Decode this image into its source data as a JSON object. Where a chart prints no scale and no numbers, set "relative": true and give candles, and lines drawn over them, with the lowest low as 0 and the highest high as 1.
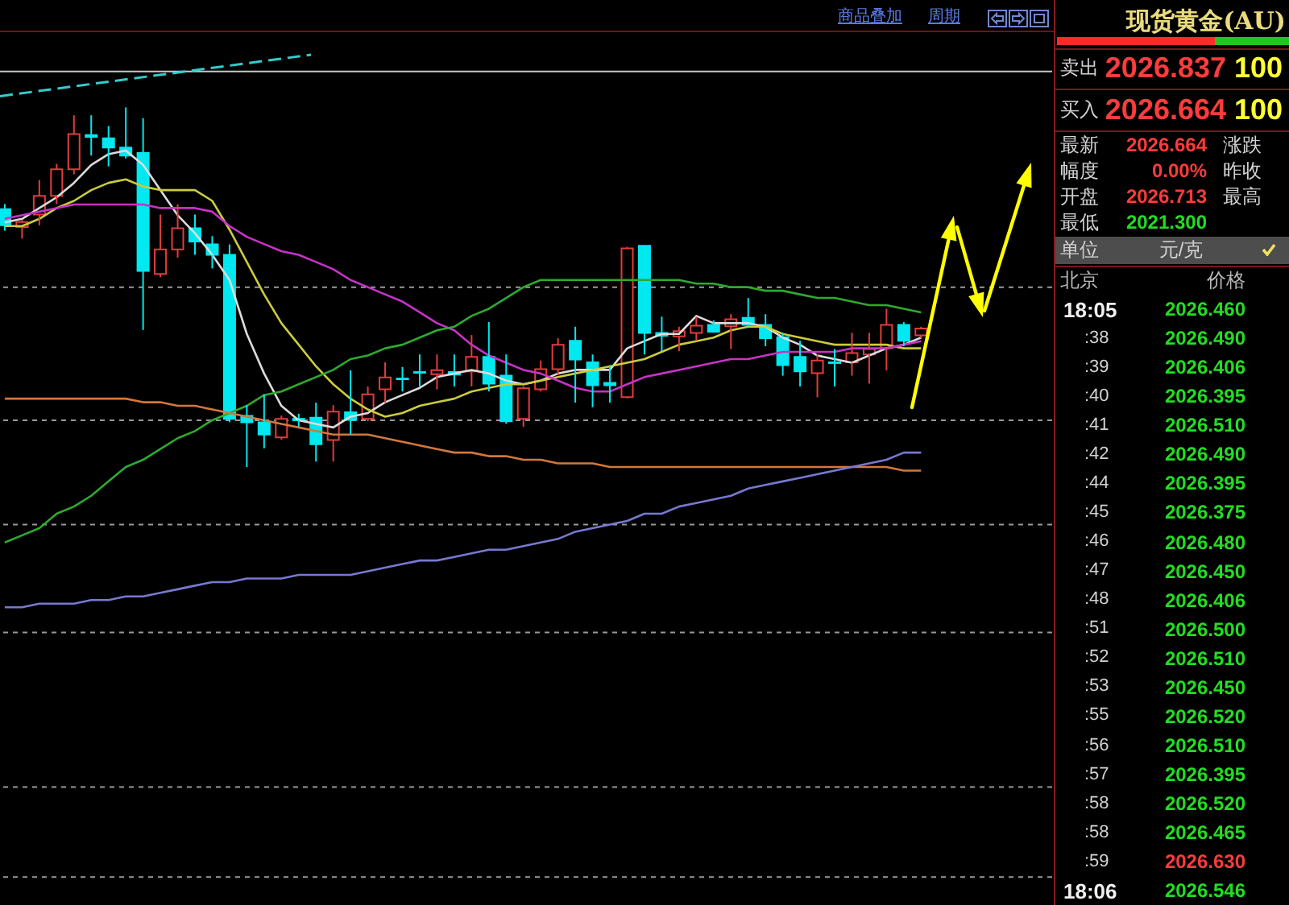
{
  "chart_data": [
    {
      "type": "candlestick",
      "relative": true,
      "annotations": [
        "商品叠加",
        "周期"
      ],
      "categories": [
        null,
        null,
        null,
        null,
        null,
        null,
        null,
        null,
        null,
        null,
        null,
        null,
        null,
        null,
        null,
        null,
        null,
        null,
        null,
        null,
        null,
        null,
        null,
        null,
        null,
        null,
        null,
        null,
        null,
        null,
        null,
        null,
        null,
        null,
        null,
        null,
        null,
        null,
        null,
        null,
        null,
        null,
        null,
        null,
        null,
        null,
        null,
        null,
        null,
        null,
        null,
        null,
        null,
        null
      ],
      "ohlc": [
        [
          0.717,
          0.731,
          0.657,
          0.672
        ],
        [
          0.667,
          0.687,
          0.635,
          0.681
        ],
        [
          0.702,
          0.798,
          0.672,
          0.754
        ],
        [
          0.754,
          0.843,
          0.731,
          0.828
        ],
        [
          0.828,
          0.978,
          0.814,
          0.926
        ],
        [
          0.923,
          0.978,
          0.866,
          0.918
        ],
        [
          0.914,
          0.948,
          0.836,
          0.888
        ],
        [
          0.888,
          1.0,
          0.858,
          0.866
        ],
        [
          0.873,
          0.97,
          0.381,
          0.545
        ],
        [
          0.537,
          0.702,
          0.528,
          0.605
        ],
        [
          0.605,
          0.731,
          0.582,
          0.664
        ],
        [
          0.664,
          0.702,
          0.59,
          0.627
        ],
        [
          0.619,
          0.642,
          0.552,
          0.59
        ],
        [
          0.59,
          0.619,
          0.125,
          0.134
        ],
        [
          0.142,
          0.172,
          0.0,
          0.124
        ],
        [
          0.124,
          0.202,
          0.052,
          0.09
        ],
        [
          0.082,
          0.143,
          0.076,
          0.134
        ],
        [
          0.134,
          0.148,
          0.112,
          0.13
        ],
        [
          0.137,
          0.179,
          0.015,
          0.063
        ],
        [
          0.075,
          0.172,
          0.015,
          0.154
        ],
        [
          0.152,
          0.269,
          0.09,
          0.131
        ],
        [
          0.134,
          0.224,
          0.127,
          0.202
        ],
        [
          0.216,
          0.291,
          0.179,
          0.249
        ],
        [
          0.246,
          0.278,
          0.21,
          0.244
        ],
        [
          0.264,
          0.313,
          0.224,
          0.262
        ],
        [
          0.258,
          0.313,
          0.216,
          0.269
        ],
        [
          0.264,
          0.313,
          0.224,
          0.257
        ],
        [
          0.266,
          0.367,
          0.224,
          0.306
        ],
        [
          0.306,
          0.403,
          0.21,
          0.232
        ],
        [
          0.254,
          0.313,
          0.12,
          0.127
        ],
        [
          0.134,
          0.224,
          0.112,
          0.219
        ],
        [
          0.216,
          0.296,
          0.21,
          0.272
        ],
        [
          0.272,
          0.358,
          0.255,
          0.34
        ],
        [
          0.351,
          0.39,
          0.179,
          0.299
        ],
        [
          0.291,
          0.313,
          0.166,
          0.227
        ],
        [
          0.234,
          0.283,
          0.179,
          0.227
        ],
        [
          0.194,
          0.612,
          0.191,
          0.608
        ],
        [
          0.615,
          0.615,
          0.313,
          0.373
        ],
        [
          0.373,
          0.418,
          0.322,
          0.365
        ],
        [
          0.363,
          0.39,
          0.322,
          0.378
        ],
        [
          0.373,
          0.418,
          0.351,
          0.393
        ],
        [
          0.395,
          0.408,
          0.373,
          0.376
        ],
        [
          0.391,
          0.425,
          0.328,
          0.411
        ],
        [
          0.415,
          0.47,
          0.39,
          0.395
        ],
        [
          0.395,
          0.425,
          0.336,
          0.358
        ],
        [
          0.361,
          0.373,
          0.254,
          0.283
        ],
        [
          0.306,
          0.351,
          0.224,
          0.266
        ],
        [
          0.261,
          0.313,
          0.194,
          0.296
        ],
        [
          0.291,
          0.328,
          0.224,
          0.289
        ],
        [
          0.291,
          0.373,
          0.254,
          0.317
        ],
        [
          0.313,
          0.373,
          0.232,
          0.328
        ],
        [
          0.331,
          0.44,
          0.269,
          0.395
        ],
        [
          0.395,
          0.403,
          0.336,
          0.351
        ],
        [
          0.366,
          0.39,
          0.358,
          0.385
        ]
      ],
      "colors": [
        "#00e8f0",
        "#e23c3c",
        "#e23c3c",
        "#e23c3c",
        "#e23c3c",
        "#00e8f0",
        "#00e8f0",
        "#00e8f0",
        "#00e8f0",
        "#e23c3c",
        "#e23c3c",
        "#00e8f0",
        "#00e8f0",
        "#00e8f0",
        "#00e8f0",
        "#00e8f0",
        "#e23c3c",
        "#00e8f0",
        "#00e8f0",
        "#e23c3c",
        "#00e8f0",
        "#e23c3c",
        "#e23c3c",
        "#00e8f0",
        "#00e8f0",
        "#e23c3c",
        "#00e8f0",
        "#e23c3c",
        "#00e8f0",
        "#00e8f0",
        "#e23c3c",
        "#e23c3c",
        "#e23c3c",
        "#00e8f0",
        "#00e8f0",
        "#00e8f0",
        "#e23c3c",
        "#00e8f0",
        "#00e8f0",
        "#e23c3c",
        "#e23c3c",
        "#00e8f0",
        "#e23c3c",
        "#00e8f0",
        "#00e8f0",
        "#00e8f0",
        "#00e8f0",
        "#e23c3c",
        "#00e8f0",
        "#e23c3c",
        "#e23c3c",
        "#e23c3c",
        "#00e8f0",
        "#e23c3c"
      ],
      "series": [
        {
          "type": "line",
          "color": "#dcdcdc",
          "values": [
            0.68,
            0.69,
            0.72,
            0.75,
            0.79,
            0.84,
            0.87,
            0.88,
            0.84,
            0.77,
            0.7,
            0.65,
            0.59,
            0.52,
            0.37,
            0.26,
            0.17,
            0.13,
            0.12,
            0.11,
            0.14,
            0.15,
            0.18,
            0.2,
            0.22,
            0.25,
            0.26,
            0.27,
            0.26,
            0.24,
            0.23,
            0.24,
            0.26,
            0.27,
            0.27,
            0.27,
            0.33,
            0.35,
            0.37,
            0.37,
            0.42,
            0.4,
            0.4,
            0.4,
            0.39,
            0.36,
            0.34,
            0.31,
            0.3,
            0.29,
            0.31,
            0.33,
            0.34,
            0.36
          ]
        },
        {
          "type": "line",
          "color": "#cccc3c",
          "values": [
            0.67,
            0.67,
            0.69,
            0.72,
            0.74,
            0.77,
            0.79,
            0.8,
            0.78,
            0.77,
            0.77,
            0.77,
            0.74,
            0.66,
            0.57,
            0.48,
            0.4,
            0.34,
            0.28,
            0.23,
            0.19,
            0.16,
            0.14,
            0.15,
            0.17,
            0.18,
            0.19,
            0.21,
            0.22,
            0.23,
            0.23,
            0.24,
            0.25,
            0.26,
            0.27,
            0.28,
            0.29,
            0.3,
            0.32,
            0.34,
            0.35,
            0.36,
            0.38,
            0.39,
            0.39,
            0.37,
            0.36,
            0.35,
            0.34,
            0.34,
            0.34,
            0.34,
            0.33,
            0.33
          ]
        },
        {
          "type": "line",
          "color": "#c832c8",
          "values": [
            0.69,
            0.7,
            0.71,
            0.72,
            0.73,
            0.73,
            0.73,
            0.73,
            0.73,
            0.72,
            0.72,
            0.72,
            0.71,
            0.67,
            0.64,
            0.62,
            0.6,
            0.59,
            0.57,
            0.55,
            0.52,
            0.5,
            0.48,
            0.46,
            0.43,
            0.4,
            0.38,
            0.34,
            0.31,
            0.29,
            0.27,
            0.26,
            0.24,
            0.22,
            0.21,
            0.21,
            0.23,
            0.25,
            0.26,
            0.27,
            0.28,
            0.29,
            0.3,
            0.3,
            0.31,
            0.32,
            0.32,
            0.32,
            0.32,
            0.33,
            0.33,
            0.33,
            0.34,
            0.35
          ]
        },
        {
          "type": "line",
          "color": "#2eaa2e",
          "values": [
            -0.21,
            -0.19,
            -0.17,
            -0.13,
            -0.11,
            -0.08,
            -0.04,
            0.0,
            0.02,
            0.05,
            0.08,
            0.1,
            0.13,
            0.15,
            0.17,
            0.2,
            0.21,
            0.23,
            0.25,
            0.27,
            0.3,
            0.31,
            0.33,
            0.34,
            0.36,
            0.38,
            0.39,
            0.42,
            0.44,
            0.47,
            0.5,
            0.52,
            0.52,
            0.52,
            0.52,
            0.52,
            0.52,
            0.52,
            0.52,
            0.52,
            0.51,
            0.51,
            0.5,
            0.5,
            0.49,
            0.49,
            0.48,
            0.47,
            0.47,
            0.46,
            0.45,
            0.45,
            0.44,
            0.43
          ]
        },
        {
          "type": "line",
          "color": "#d2783c",
          "values": [
            0.19,
            0.19,
            0.19,
            0.19,
            0.19,
            0.19,
            0.19,
            0.19,
            0.18,
            0.18,
            0.17,
            0.17,
            0.16,
            0.15,
            0.14,
            0.13,
            0.12,
            0.11,
            0.1,
            0.09,
            0.09,
            0.09,
            0.08,
            0.07,
            0.06,
            0.05,
            0.04,
            0.04,
            0.03,
            0.03,
            0.02,
            0.02,
            0.01,
            0.01,
            0.01,
            0.0,
            0.0,
            0.0,
            0.0,
            0.0,
            0.0,
            0.0,
            0.0,
            0.0,
            0.0,
            0.0,
            0.0,
            0.0,
            0.0,
            0.0,
            0.0,
            0.0,
            -0.01,
            -0.01
          ]
        },
        {
          "type": "line",
          "color": "#7878d2",
          "values": [
            -0.39,
            -0.39,
            -0.38,
            -0.38,
            -0.38,
            -0.37,
            -0.37,
            -0.36,
            -0.36,
            -0.35,
            -0.34,
            -0.33,
            -0.32,
            -0.32,
            -0.31,
            -0.31,
            -0.31,
            -0.3,
            -0.3,
            -0.3,
            -0.3,
            -0.29,
            -0.28,
            -0.27,
            -0.26,
            -0.26,
            -0.25,
            -0.24,
            -0.23,
            -0.23,
            -0.22,
            -0.21,
            -0.2,
            -0.18,
            -0.17,
            -0.16,
            -0.15,
            -0.13,
            -0.13,
            -0.11,
            -0.1,
            -0.09,
            -0.08,
            -0.06,
            -0.05,
            -0.04,
            -0.03,
            -0.02,
            -0.01,
            0.0,
            0.01,
            0.02,
            0.04,
            0.04
          ]
        }
      ],
      "ref_lines": [
        {
          "axis": "y",
          "value": 1.1,
          "color": "#c8c8c8"
        },
        {
          "axis": "y",
          "value": 0.5,
          "color": "#9a9a9a",
          "line_style": "dotted"
        },
        {
          "axis": "y",
          "value": 0.13,
          "color": "#9a9a9a",
          "line_style": "dotted"
        },
        {
          "axis": "y",
          "value": -0.16,
          "color": "#9a9a9a",
          "line_style": "dotted"
        },
        {
          "axis": "y",
          "value": -0.46,
          "color": "#9a9a9a",
          "line_style": "dotted"
        },
        {
          "axis": "y",
          "value": -0.89,
          "color": "#9a9a9a",
          "line_style": "dotted"
        },
        {
          "axis": "y",
          "value": -1.14,
          "color": "#9a9a9a",
          "line_style": "dotted"
        }
      ]
    },
    {
      "type": "other",
      "title": "现货黄金(AU)",
      "annotations": [
        "卖出",
        "2026.837",
        "100",
        "买入",
        "2026.664",
        "100",
        "最新",
        "2026.664",
        "涨跌",
        "幅度",
        "0.00%",
        "昨收",
        "开盘",
        "2026.713",
        "最高",
        "最低",
        "2021.300",
        "单位",
        "元/克",
        "北京",
        "价格",
        "18:05",
        "2026.460",
        ":38",
        "2026.490",
        ":39",
        "2026.406",
        ":40",
        "2026.395",
        ":41",
        "2026.510",
        ":42",
        "2026.490",
        ":44",
        "2026.395",
        ":45",
        "2026.375",
        ":46",
        "2026.480",
        ":47",
        "2026.450",
        ":48",
        "2026.406",
        ":51",
        "2026.500",
        ":52",
        "2026.510",
        ":53",
        "2026.450",
        ":55",
        "2026.520",
        ":56",
        "2026.510",
        ":57",
        "2026.395",
        ":58",
        "2026.520",
        ":58",
        "2026.465",
        ":59",
        "2026.630",
        "18:06",
        "2026.546"
      ]
    }
  ]
}
